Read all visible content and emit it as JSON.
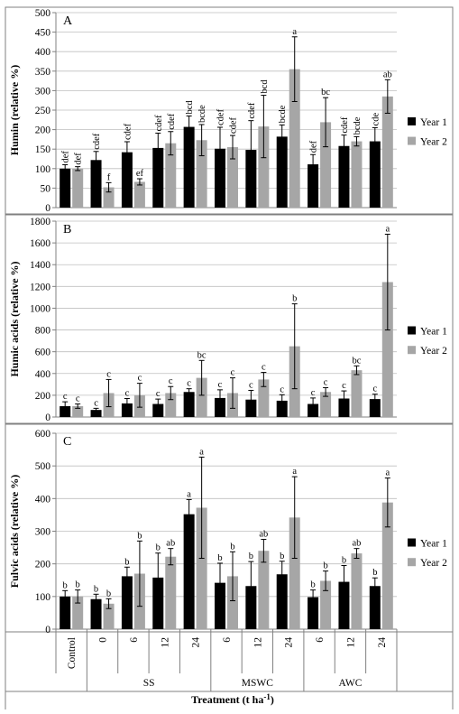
{
  "colors": {
    "year1": "#000000",
    "year2": "#a6a6a6",
    "axis": "#808080",
    "grid": "#bfbfbf",
    "frame": "#808080"
  },
  "categories": [
    "Control",
    "0",
    "6",
    "12",
    "24",
    "6",
    "12",
    "24",
    "6",
    "12",
    "24"
  ],
  "groups": [
    {
      "label": "SS",
      "start": 1,
      "end": 4
    },
    {
      "label": "MSWC",
      "start": 5,
      "end": 7
    },
    {
      "label": "AWC",
      "start": 8,
      "end": 10
    }
  ],
  "xlabel_main": "Treatment (t ha",
  "xlabel_sup": "-1",
  "xlabel_close": ")",
  "legend": [
    "Year 1",
    "Year 2"
  ],
  "chart_data": [
    {
      "type": "bar",
      "panel": "A",
      "ylabel": "Humin (relative %)",
      "ylim": [
        0,
        500
      ],
      "yticks": [
        0,
        50,
        100,
        150,
        200,
        250,
        300,
        350,
        400,
        450,
        500
      ],
      "series": [
        {
          "name": "Year 1",
          "values": [
            100,
            122,
            142,
            153,
            207,
            151,
            148,
            182,
            111,
            158,
            170
          ],
          "errors": [
            10,
            22,
            27,
            38,
            28,
            55,
            75,
            30,
            25,
            28,
            35
          ],
          "letters": [
            "def",
            "cdef",
            "cdef",
            "cdef",
            "bcd",
            "cdef",
            "cdef",
            "bcde",
            "def",
            "cdef",
            "cde"
          ]
        },
        {
          "name": "Year 2",
          "values": [
            100,
            52,
            66,
            165,
            173,
            155,
            208,
            355,
            219,
            170,
            285
          ],
          "errors": [
            5,
            12,
            8,
            30,
            40,
            30,
            80,
            83,
            63,
            12,
            43
          ],
          "letters": [
            "def",
            "f",
            "ef",
            "cdef",
            "bcde",
            "cdef",
            "bcd",
            "a",
            "bc",
            "bcde",
            "ab"
          ]
        }
      ]
    },
    {
      "type": "bar",
      "panel": "B",
      "ylabel": "Humic acids (relative %)",
      "ylim": [
        0,
        1800
      ],
      "yticks": [
        0,
        200,
        400,
        600,
        800,
        1000,
        1200,
        1400,
        1600,
        1800
      ],
      "series": [
        {
          "name": "Year 1",
          "values": [
            100,
            65,
            125,
            120,
            230,
            175,
            160,
            150,
            120,
            170,
            165
          ],
          "errors": [
            40,
            15,
            45,
            45,
            30,
            75,
            85,
            55,
            55,
            70,
            45
          ],
          "letters": [
            "c",
            "c",
            "c",
            "c",
            "c",
            "c",
            "c",
            "c",
            "c",
            "c",
            "c"
          ]
        },
        {
          "name": "Year 2",
          "values": [
            100,
            220,
            200,
            220,
            360,
            220,
            345,
            650,
            230,
            430,
            1240
          ],
          "errors": [
            20,
            125,
            110,
            60,
            160,
            140,
            65,
            390,
            40,
            40,
            440
          ],
          "letters": [
            "c",
            "c",
            "c",
            "c",
            "bc",
            "c",
            "c",
            "b",
            "c",
            "bc",
            "a"
          ]
        }
      ]
    },
    {
      "type": "bar",
      "panel": "C",
      "ylabel": "Fulvic acids (relative %)",
      "ylim": [
        0,
        600
      ],
      "yticks": [
        0,
        100,
        200,
        300,
        400,
        500,
        600
      ],
      "series": [
        {
          "name": "Year 1",
          "values": [
            100,
            92,
            162,
            158,
            352,
            142,
            132,
            168,
            98,
            145,
            132
          ],
          "errors": [
            18,
            15,
            28,
            75,
            45,
            60,
            75,
            40,
            22,
            50,
            25
          ],
          "letters": [
            "b",
            "b",
            "b",
            "b",
            "a",
            "b",
            "b",
            "b",
            "b",
            "b",
            "b"
          ]
        },
        {
          "name": "Year 2",
          "values": [
            100,
            78,
            170,
            222,
            372,
            162,
            240,
            342,
            148,
            232,
            388
          ],
          "errors": [
            20,
            15,
            100,
            25,
            155,
            75,
            35,
            125,
            30,
            15,
            75
          ],
          "letters": [
            "b",
            "b",
            "b",
            "ab",
            "a",
            "b",
            "ab",
            "a",
            "b",
            "ab",
            "a"
          ]
        }
      ]
    }
  ]
}
